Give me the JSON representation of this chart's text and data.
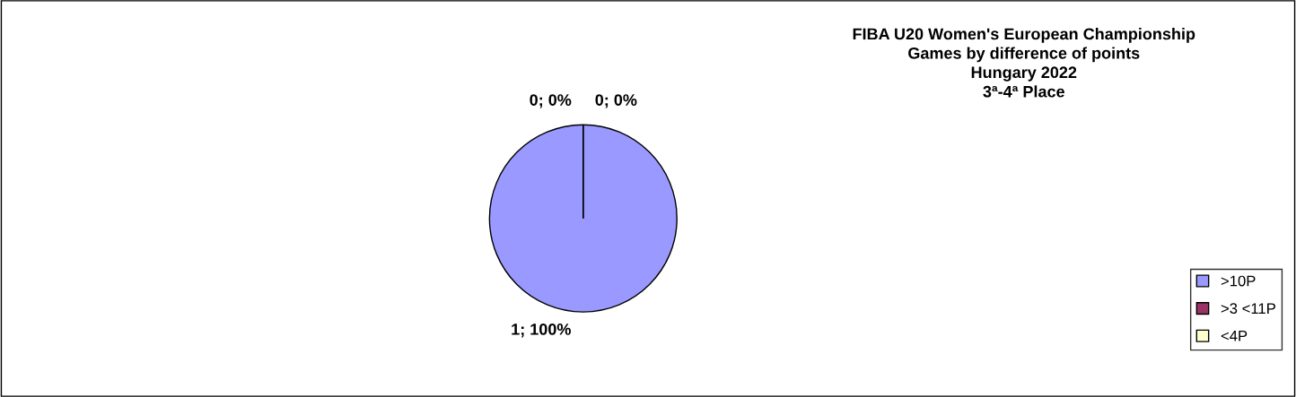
{
  "chart_data": {
    "type": "pie",
    "title": "FIBA U20 Women's European Championship\nGames by difference of points\nHungary 2022\n3ª-4ª Place",
    "categories": [
      ">10P",
      ">3 <11P",
      "<4P"
    ],
    "values": [
      100,
      0,
      0
    ],
    "value_labels": [
      "1; 100%",
      "0; 0%",
      "0; 0%"
    ],
    "colors": [
      "#9999ff",
      "#993366",
      "#ffffcc"
    ],
    "legend": "right"
  }
}
